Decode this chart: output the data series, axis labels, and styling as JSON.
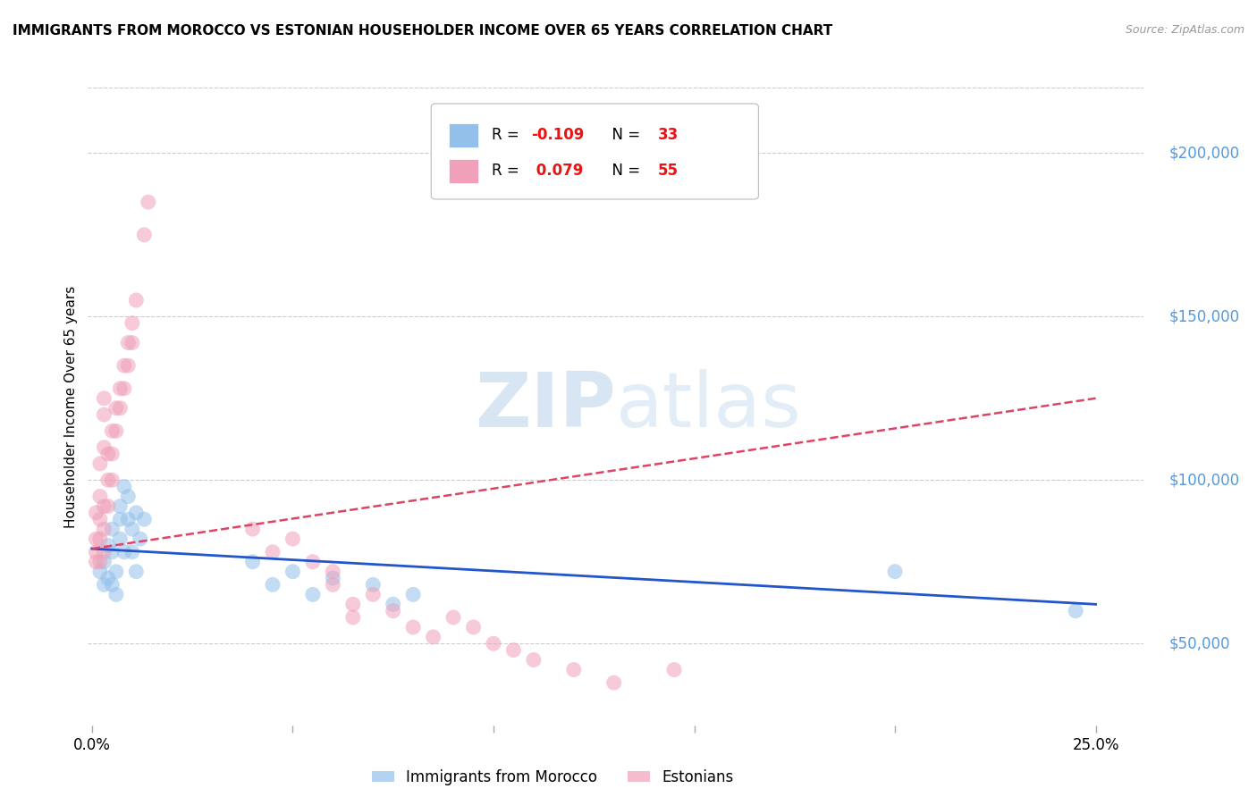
{
  "title": "IMMIGRANTS FROM MOROCCO VS ESTONIAN HOUSEHOLDER INCOME OVER 65 YEARS CORRELATION CHART",
  "source": "Source: ZipAtlas.com",
  "ylabel": "Householder Income Over 65 years",
  "y_tick_values": [
    50000,
    100000,
    150000,
    200000
  ],
  "ylim": [
    25000,
    220000
  ],
  "xlim": [
    -0.001,
    0.262
  ],
  "morocco_color": "#92c0ea",
  "estonian_color": "#f0a0b8",
  "morocco_trend_color": "#2255cc",
  "estonian_trend_color": "#dd4466",
  "background_color": "#ffffff",
  "grid_color": "#cccccc",
  "yaxis_label_color": "#5599dd",
  "morocco_points": [
    [
      0.002,
      72000
    ],
    [
      0.003,
      68000
    ],
    [
      0.003,
      75000
    ],
    [
      0.004,
      80000
    ],
    [
      0.004,
      70000
    ],
    [
      0.005,
      68000
    ],
    [
      0.005,
      85000
    ],
    [
      0.005,
      78000
    ],
    [
      0.006,
      72000
    ],
    [
      0.006,
      65000
    ],
    [
      0.007,
      88000
    ],
    [
      0.007,
      82000
    ],
    [
      0.007,
      92000
    ],
    [
      0.008,
      78000
    ],
    [
      0.008,
      98000
    ],
    [
      0.009,
      88000
    ],
    [
      0.009,
      95000
    ],
    [
      0.01,
      85000
    ],
    [
      0.01,
      78000
    ],
    [
      0.011,
      90000
    ],
    [
      0.011,
      72000
    ],
    [
      0.012,
      82000
    ],
    [
      0.013,
      88000
    ],
    [
      0.04,
      75000
    ],
    [
      0.045,
      68000
    ],
    [
      0.05,
      72000
    ],
    [
      0.055,
      65000
    ],
    [
      0.06,
      70000
    ],
    [
      0.07,
      68000
    ],
    [
      0.075,
      62000
    ],
    [
      0.08,
      65000
    ],
    [
      0.2,
      72000
    ],
    [
      0.245,
      60000
    ]
  ],
  "estonian_points": [
    [
      0.001,
      78000
    ],
    [
      0.001,
      82000
    ],
    [
      0.001,
      75000
    ],
    [
      0.001,
      90000
    ],
    [
      0.002,
      95000
    ],
    [
      0.002,
      88000
    ],
    [
      0.002,
      82000
    ],
    [
      0.002,
      105000
    ],
    [
      0.002,
      75000
    ],
    [
      0.003,
      92000
    ],
    [
      0.003,
      85000
    ],
    [
      0.003,
      78000
    ],
    [
      0.003,
      110000
    ],
    [
      0.003,
      120000
    ],
    [
      0.003,
      125000
    ],
    [
      0.004,
      108000
    ],
    [
      0.004,
      100000
    ],
    [
      0.004,
      92000
    ],
    [
      0.005,
      115000
    ],
    [
      0.005,
      108000
    ],
    [
      0.005,
      100000
    ],
    [
      0.006,
      122000
    ],
    [
      0.006,
      115000
    ],
    [
      0.007,
      128000
    ],
    [
      0.007,
      122000
    ],
    [
      0.008,
      135000
    ],
    [
      0.008,
      128000
    ],
    [
      0.009,
      142000
    ],
    [
      0.009,
      135000
    ],
    [
      0.01,
      148000
    ],
    [
      0.01,
      142000
    ],
    [
      0.011,
      155000
    ],
    [
      0.013,
      175000
    ],
    [
      0.014,
      185000
    ],
    [
      0.04,
      85000
    ],
    [
      0.045,
      78000
    ],
    [
      0.05,
      82000
    ],
    [
      0.055,
      75000
    ],
    [
      0.06,
      68000
    ],
    [
      0.06,
      72000
    ],
    [
      0.065,
      62000
    ],
    [
      0.065,
      58000
    ],
    [
      0.07,
      65000
    ],
    [
      0.075,
      60000
    ],
    [
      0.08,
      55000
    ],
    [
      0.085,
      52000
    ],
    [
      0.09,
      58000
    ],
    [
      0.095,
      55000
    ],
    [
      0.1,
      50000
    ],
    [
      0.105,
      48000
    ],
    [
      0.11,
      45000
    ],
    [
      0.12,
      42000
    ],
    [
      0.13,
      38000
    ],
    [
      0.145,
      42000
    ]
  ],
  "morocco_trend_x": [
    0.0,
    0.25
  ],
  "morocco_trend_y": [
    79000,
    62000
  ],
  "estonian_trend_x": [
    0.0,
    0.25
  ],
  "estonian_trend_y": [
    79000,
    125000
  ]
}
